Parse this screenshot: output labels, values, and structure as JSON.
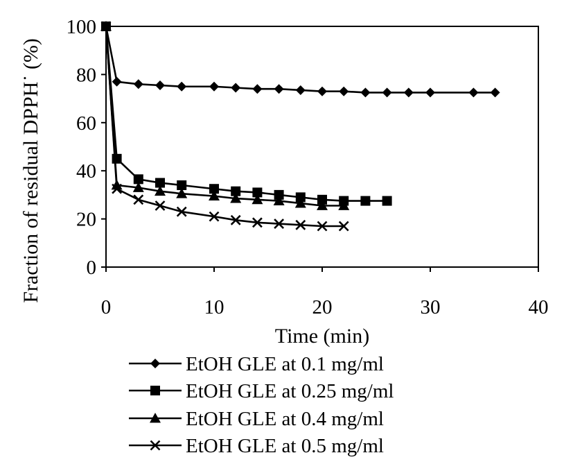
{
  "chart_data": {
    "type": "line",
    "title": "",
    "xlabel": "Time (min)",
    "ylabel": "Fraction of residual DPPH˙ (%)",
    "xlim": [
      0,
      40
    ],
    "ylim": [
      0,
      100
    ],
    "x_ticks": [
      "0",
      "10",
      "20",
      "30",
      "40"
    ],
    "y_ticks": [
      "0",
      "20",
      "40",
      "60",
      "80",
      "100"
    ],
    "grid": false,
    "legend_position": "bottom",
    "series": [
      {
        "name": "EtOH GLE at 0.1 mg/ml",
        "marker": "diamond",
        "x": [
          0,
          1,
          3,
          5,
          7,
          10,
          12,
          14,
          16,
          18,
          20,
          22,
          24,
          26,
          28,
          30,
          34,
          36
        ],
        "y": [
          100,
          77,
          76,
          75.5,
          75,
          75,
          74.5,
          74,
          74,
          73.5,
          73,
          73,
          72.5,
          72.5,
          72.5,
          72.5,
          72.5,
          72.5
        ]
      },
      {
        "name": "EtOH GLE at 0.25 mg/ml",
        "marker": "square",
        "x": [
          0,
          1,
          3,
          5,
          7,
          10,
          12,
          14,
          16,
          18,
          20,
          22,
          24,
          26
        ],
        "y": [
          100,
          45,
          36.5,
          35,
          34,
          32.5,
          31.5,
          31,
          30,
          29,
          28,
          27.5,
          27.5,
          27.5
        ]
      },
      {
        "name": "EtOH GLE at 0.4 mg/ml",
        "marker": "triangle",
        "x": [
          0,
          1,
          3,
          5,
          7,
          10,
          12,
          14,
          16,
          18,
          20,
          22
        ],
        "y": [
          100,
          34,
          33,
          31.5,
          30.5,
          29.5,
          28.5,
          28,
          27.5,
          26.5,
          25.5,
          25.5
        ]
      },
      {
        "name": "EtOH GLE at 0.5 mg/ml",
        "marker": "x",
        "x": [
          0,
          1,
          3,
          5,
          7,
          10,
          12,
          14,
          16,
          18,
          20,
          22
        ],
        "y": [
          100,
          32.5,
          28,
          25.5,
          23,
          21,
          19.5,
          18.5,
          18,
          17.5,
          17,
          17
        ]
      }
    ]
  }
}
